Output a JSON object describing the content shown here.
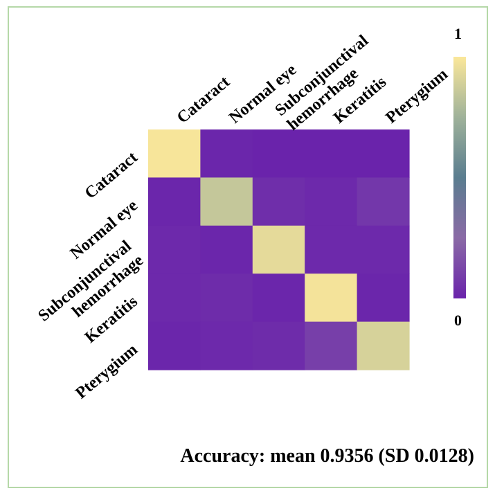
{
  "chart_data": {
    "type": "heatmap",
    "x_categories": [
      [
        "Cataract"
      ],
      [
        "Normal eye"
      ],
      [
        "Subconjunctival",
        "hemorrhage"
      ],
      [
        "Keratitis"
      ],
      [
        "Pterygium"
      ]
    ],
    "y_categories": [
      [
        "Cataract"
      ],
      [
        "Normal eye"
      ],
      [
        "Subconjunctival",
        "hemorrhage"
      ],
      [
        "Keratitis"
      ],
      [
        "Pterygium"
      ]
    ],
    "values": [
      [
        0.99,
        0.01,
        0.0,
        0.0,
        0.0
      ],
      [
        0.01,
        0.85,
        0.04,
        0.02,
        0.07
      ],
      [
        0.02,
        0.01,
        0.94,
        0.02,
        0.02
      ],
      [
        0.02,
        0.03,
        0.01,
        0.98,
        0.01
      ],
      [
        0.01,
        0.02,
        0.03,
        0.1,
        0.9
      ]
    ],
    "colorbar": {
      "max_label": "1",
      "min_label": "0",
      "range": [
        0,
        1
      ],
      "colors": [
        "#6a23ab",
        "#8a6aa6",
        "#5a7d8f",
        "#9fb29a",
        "#fbe79a"
      ]
    }
  },
  "accuracy_text": "Accuracy: mean 0.9356 (SD 0.0128)"
}
